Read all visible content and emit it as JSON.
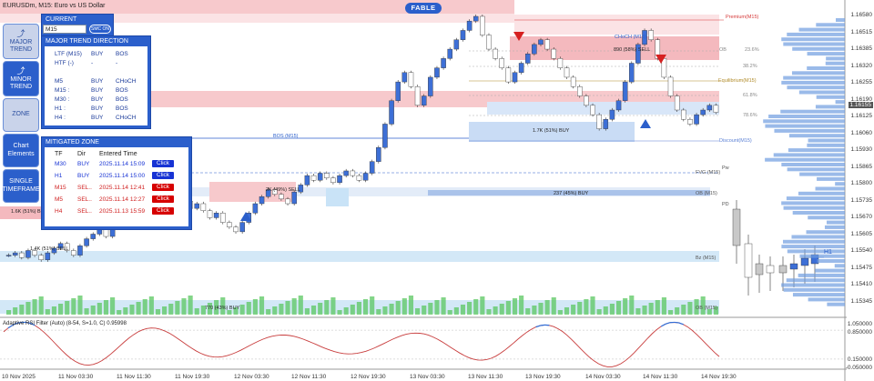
{
  "chart_header": {
    "symbol": "EURUSDm, M15:  Euro vs US Dollar",
    "badge": "FABLE"
  },
  "price_axis": [
    "1.16580",
    "1.16515",
    "1.16385",
    "1.16320",
    "1.16255",
    "1.16190",
    "1.16125",
    "1.16060",
    "1.15930",
    "1.15865",
    "1.15800",
    "1.15735",
    "1.15670",
    "1.15605",
    "1.15540",
    "1.15475",
    "1.15410",
    "1.15345"
  ],
  "current_price_label": "1.16155",
  "time_axis": [
    "10 Nov 2025",
    "11 Nov 03:30",
    "11 Nov 11:30",
    "11 Nov 19:30",
    "12 Nov 03:30",
    "12 Nov 11:30",
    "12 Nov 19:30",
    "13 Nov 03:30",
    "13 Nov 11:30",
    "13 Nov 19:30",
    "14 Nov 03:30",
    "14 Nov 11:30",
    "14 Nov 19:30"
  ],
  "indicator": {
    "name": "Adaptive RSI Filter (Auto) (8-54, S=1.0, C) 0.95998",
    "levels": [
      "1.050000",
      "0.850000",
      "0.150000",
      "-0.050000"
    ]
  },
  "side_buttons": [
    {
      "label": "MAJOR TREND",
      "style": "light"
    },
    {
      "label": "MINOR TREND",
      "style": "dark"
    },
    {
      "label": "ZONE",
      "style": "light"
    },
    {
      "label": "Chart Elements",
      "style": "dark"
    },
    {
      "label": "SINGLE TIMEFRAME",
      "style": "dark"
    }
  ],
  "current_panel": {
    "title": "CURRENT",
    "timeframe": "M15",
    "smc_button": "SMC ON"
  },
  "major_trend_panel": {
    "title": "MAJOR TREND DIRECTION",
    "rows": [
      [
        "LTF (M15)",
        "BUY",
        "BOS"
      ],
      [
        "HTF (-)",
        "-",
        "-"
      ],
      [
        "",
        "",
        ""
      ],
      [
        "M5",
        "BUY",
        "CHoCH"
      ],
      [
        "M15 :",
        "BUY",
        "BOS"
      ],
      [
        "M30 :",
        "BUY",
        "BOS"
      ],
      [
        "H1 :",
        "BUY",
        "BOS"
      ],
      [
        "H4 :",
        "BUY",
        "CHoCH"
      ]
    ]
  },
  "mitigated_panel": {
    "title": "MITIGATED ZONE",
    "headers": [
      "TF",
      "Dir",
      "Entered Time",
      ""
    ],
    "rows": [
      {
        "tf": "M30",
        "dir": "BUY",
        "time": "2025.11.14 15:09",
        "btn": "Click",
        "color": "blue"
      },
      {
        "tf": "H1",
        "dir": "BUY",
        "time": "2025.11.14 15:00",
        "btn": "Click",
        "color": "blue"
      },
      {
        "tf": "M15",
        "dir": "SEL..",
        "time": "2025.11.14 12:41",
        "btn": "Click",
        "color": "red"
      },
      {
        "tf": "M5",
        "dir": "SEL..",
        "time": "2025.11.14 12:27",
        "btn": "Click",
        "color": "red"
      },
      {
        "tf": "H4",
        "dir": "SEL..",
        "time": "2025.11.13 15:59",
        "btn": "Click",
        "color": "red"
      }
    ]
  },
  "chart_labels": {
    "premium": "Premium(M15)",
    "ob": "OB",
    "pct_23": "23.6%",
    "pct_38": "38.2%",
    "eq": "Equilibrium(M15)",
    "pct_61": "61.8%",
    "pct_78": "78.6%",
    "discount": "Discount(M15)",
    "fvg": "FVG (M15)",
    "ob2": "OB (M15)",
    "bz": "Bz (M15)",
    "ob3": "OB (M15)",
    "h1": "H1",
    "pd": "PD",
    "pw": "Pw",
    "zone_sell": "890 (58%) SELL",
    "zone_buy1": "1.7K (51%) BUY",
    "zone_sell2": "2K (49%) SELL",
    "zone_buy2": "237 (45%) BUY",
    "zone_buy3": "770 (43%) BUY",
    "zone_buy4": "1.6K (51%) BUY",
    "zone_sell3": "1.4K (51%) SELL",
    "bos": "BOS (M15)",
    "choch": "CHoCH (M15)",
    "legend_m5": "M5"
  },
  "colors": {
    "accent": "#2b5fcb",
    "buy_zone": "#c9dcf5",
    "sell_zone": "#f7c9cc",
    "bull_candle": "#3d6fd6",
    "bear_candle": "#ffffff",
    "candle_line": "#333333",
    "volume": "#59c760",
    "indicator_line": "#c83c3c",
    "indicator_hi": "#2f6fd9"
  }
}
